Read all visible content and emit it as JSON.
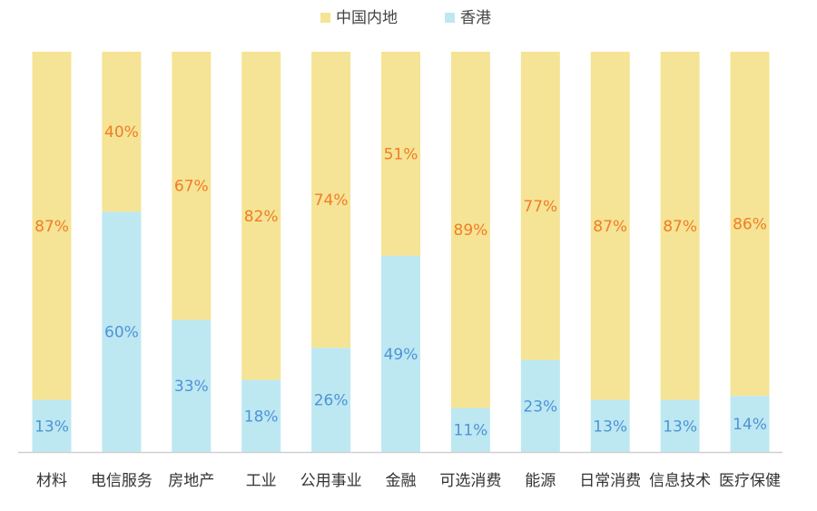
{
  "chart_data": {
    "type": "bar",
    "stacked": true,
    "percent_stacked": true,
    "categories": [
      "材料",
      "电信服务",
      "房地产",
      "工业",
      "公用事业",
      "金融",
      "可选消费",
      "能源",
      "日常消费",
      "信息技术",
      "医疗保健"
    ],
    "series": [
      {
        "name": "中国内地",
        "color": "#f5e495",
        "label_color": "#f07d27",
        "values": [
          87,
          40,
          67,
          82,
          74,
          51,
          89,
          77,
          87,
          87,
          86
        ]
      },
      {
        "name": "香港",
        "color": "#bde8f2",
        "label_color": "#4f93d6",
        "values": [
          13,
          60,
          33,
          18,
          26,
          49,
          11,
          23,
          13,
          13,
          14
        ]
      }
    ],
    "value_suffix": "%",
    "ylim": [
      0,
      100
    ],
    "grid": false,
    "legend_position": "top-center"
  }
}
